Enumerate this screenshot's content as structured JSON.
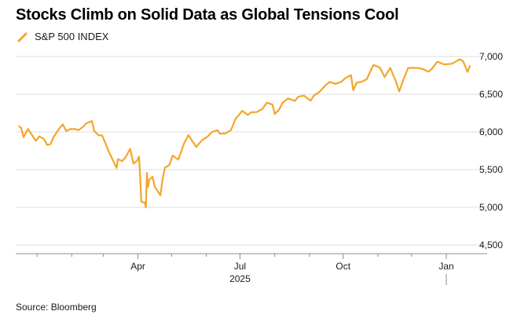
{
  "title": "Stocks Climb on Solid Data as Global Tensions Cool",
  "source": "Source: Bloomberg",
  "colors": {
    "line": "#F5A52A",
    "grid": "#dcdcdc",
    "axis": "#8c8c8c",
    "text": "#1a1a1a"
  },
  "chart_data": {
    "type": "line",
    "title": "Stocks Climb on Solid Data as Global Tensions Cool",
    "xlabel": "2025",
    "ylabel": "",
    "legend": "top-left",
    "grid": true,
    "ylim": [
      4500,
      7000
    ],
    "y_ticks": [
      7000,
      6500,
      6000,
      5500,
      5000,
      4500
    ],
    "y_tick_labels": [
      "7,000",
      "6,500",
      "6,000",
      "5,500",
      "5,000",
      "4,500"
    ],
    "x_range": [
      "2024-12-13",
      "2026-01-22"
    ],
    "x_ticks": [
      {
        "date": "2025-04-01",
        "label": "Apr"
      },
      {
        "date": "2025-07-01",
        "label": "Jul"
      },
      {
        "date": "2025-10-01",
        "label": "Oct"
      },
      {
        "date": "2026-01-01",
        "label": "Jan"
      }
    ],
    "year_label": {
      "date": "2025-07-01",
      "label": "2025"
    },
    "series": [
      {
        "name": "S&P 500 INDEX",
        "x": [
          "2024-12-16",
          "2024-12-18",
          "2024-12-20",
          "2024-12-24",
          "2024-12-27",
          "2024-12-31",
          "2025-01-03",
          "2025-01-07",
          "2025-01-10",
          "2025-01-13",
          "2025-01-16",
          "2025-01-21",
          "2025-01-24",
          "2025-01-27",
          "2025-01-31",
          "2025-02-04",
          "2025-02-07",
          "2025-02-11",
          "2025-02-14",
          "2025-02-19",
          "2025-02-21",
          "2025-02-25",
          "2025-02-28",
          "2025-03-03",
          "2025-03-06",
          "2025-03-10",
          "2025-03-13",
          "2025-03-14",
          "2025-03-18",
          "2025-03-21",
          "2025-03-25",
          "2025-03-28",
          "2025-03-31",
          "2025-04-02",
          "2025-04-03",
          "2025-04-04",
          "2025-04-07",
          "2025-04-08",
          "2025-04-09",
          "2025-04-10",
          "2025-04-11",
          "2025-04-14",
          "2025-04-16",
          "2025-04-21",
          "2025-04-23",
          "2025-04-25",
          "2025-04-29",
          "2025-05-02",
          "2025-05-07",
          "2025-05-12",
          "2025-05-16",
          "2025-05-21",
          "2025-05-23",
          "2025-05-28",
          "2025-06-02",
          "2025-06-06",
          "2025-06-11",
          "2025-06-13",
          "2025-06-18",
          "2025-06-23",
          "2025-06-27",
          "2025-07-03",
          "2025-07-08",
          "2025-07-11",
          "2025-07-16",
          "2025-07-21",
          "2025-07-25",
          "2025-07-30",
          "2025-08-01",
          "2025-08-05",
          "2025-08-08",
          "2025-08-13",
          "2025-08-19",
          "2025-08-22",
          "2025-08-27",
          "2025-09-02",
          "2025-09-05",
          "2025-09-10",
          "2025-09-15",
          "2025-09-19",
          "2025-09-24",
          "2025-09-29",
          "2025-10-03",
          "2025-10-08",
          "2025-10-10",
          "2025-10-13",
          "2025-10-17",
          "2025-10-22",
          "2025-10-28",
          "2025-11-03",
          "2025-11-07",
          "2025-11-12",
          "2025-11-17",
          "2025-11-20",
          "2025-11-24",
          "2025-11-28",
          "2025-12-03",
          "2025-12-08",
          "2025-12-12",
          "2025-12-16",
          "2025-12-19",
          "2025-12-24",
          "2025-12-30",
          "2026-01-05",
          "2026-01-08",
          "2026-01-13",
          "2026-01-16",
          "2026-01-20",
          "2026-01-22"
        ],
        "values": [
          6075,
          6050,
          5930,
          6040,
          5970,
          5881,
          5942,
          5909,
          5827,
          5836,
          5937,
          6049,
          6101,
          6012,
          6040,
          6037,
          6025,
          6068,
          6115,
          6144,
          6013,
          5955,
          5954,
          5849,
          5738,
          5614,
          5522,
          5639,
          5614,
          5667,
          5776,
          5581,
          5612,
          5671,
          5397,
          5074,
          5062,
          5000,
          5457,
          5268,
          5363,
          5406,
          5275,
          5159,
          5376,
          5525,
          5561,
          5687,
          5632,
          5844,
          5958,
          5845,
          5802,
          5889,
          5936,
          6000,
          6023,
          5977,
          5980,
          6025,
          6173,
          6279,
          6226,
          6260,
          6264,
          6305,
          6389,
          6362,
          6238,
          6299,
          6389,
          6445,
          6411,
          6467,
          6481,
          6415,
          6482,
          6532,
          6615,
          6664,
          6637,
          6661,
          6715,
          6753,
          6552,
          6654,
          6664,
          6699,
          6890,
          6851,
          6728,
          6850,
          6672,
          6538,
          6705,
          6849,
          6850,
          6846,
          6827,
          6800,
          6834,
          6932,
          6896,
          6902,
          6921,
          6963,
          6940,
          6796,
          6875
        ]
      }
    ]
  },
  "legend_label": "S&P 500 INDEX"
}
